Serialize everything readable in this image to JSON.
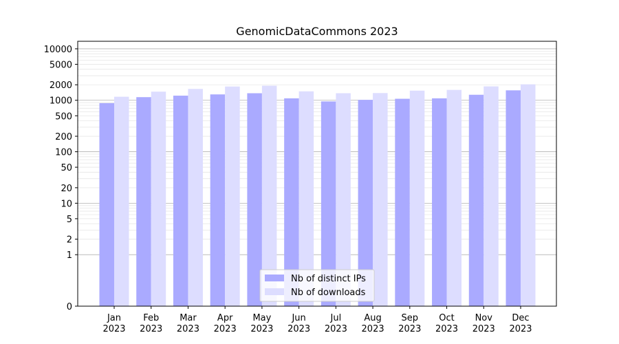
{
  "chart_data": {
    "type": "bar",
    "title": "GenomicDataCommons 2023",
    "xlabel": "",
    "ylabel": "",
    "yscale": "symlog",
    "ylim": [
      0,
      14000
    ],
    "yticks": [
      0,
      1,
      2,
      5,
      10,
      20,
      50,
      100,
      200,
      500,
      1000,
      2000,
      5000,
      10000
    ],
    "grid": "y (major and minor)",
    "legend_position": "lower-center",
    "categories": [
      "Jan\n2023",
      "Feb\n2023",
      "Mar\n2023",
      "Apr\n2023",
      "May\n2023",
      "Jun\n2023",
      "Jul\n2023",
      "Aug\n2023",
      "Sep\n2023",
      "Oct\n2023",
      "Nov\n2023",
      "Dec\n2023"
    ],
    "series": [
      {
        "name": "Nb of distinct IPs",
        "color": "#aaaaff",
        "values": [
          880,
          1150,
          1230,
          1300,
          1370,
          1090,
          950,
          1020,
          1070,
          1090,
          1280,
          1560
        ]
      },
      {
        "name": "Nb of downloads",
        "color": "#ddddff",
        "values": [
          1170,
          1470,
          1660,
          1850,
          1920,
          1490,
          1370,
          1380,
          1540,
          1590,
          1860,
          2040
        ]
      }
    ]
  }
}
